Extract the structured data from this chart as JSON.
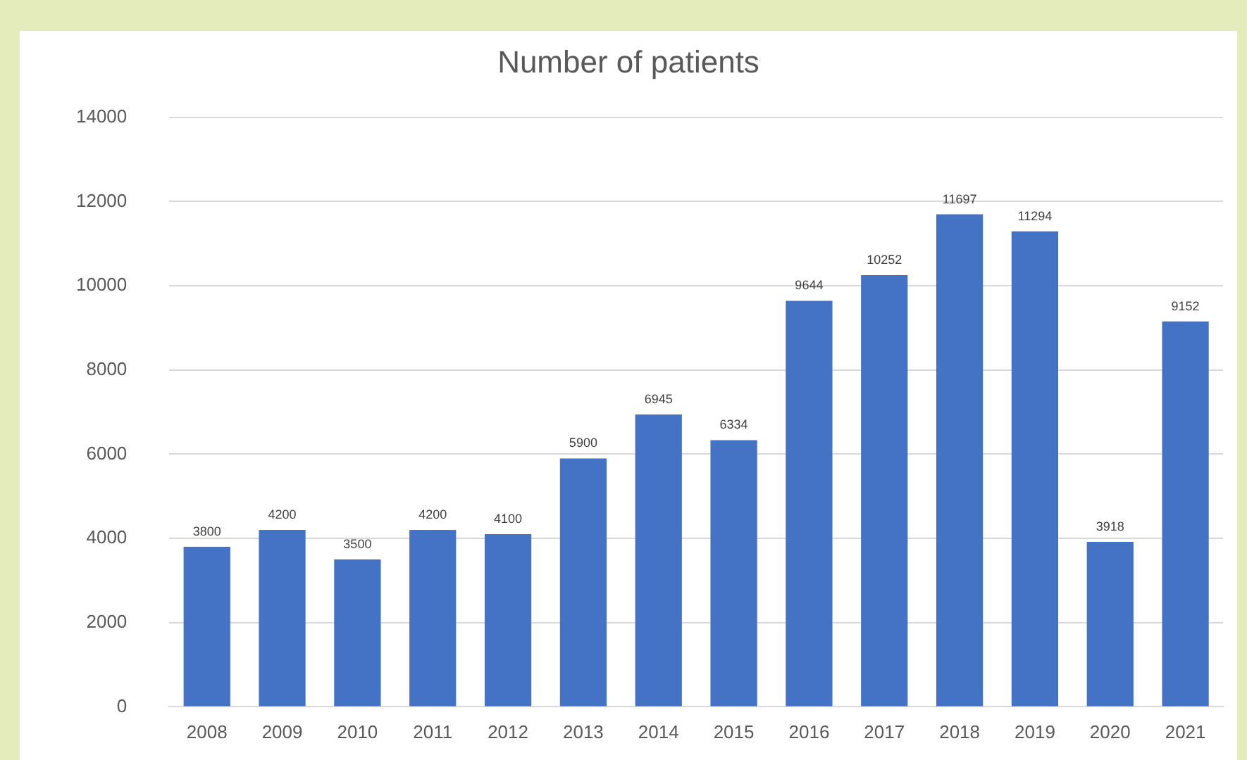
{
  "chart_data": {
    "type": "bar",
    "title": "Number of patients",
    "categories": [
      "2008",
      "2009",
      "2010",
      "2011",
      "2012",
      "2013",
      "2014",
      "2015",
      "2016",
      "2017",
      "2018",
      "2019",
      "2020",
      "2021"
    ],
    "values": [
      3800,
      4200,
      3500,
      4200,
      4100,
      5900,
      6945,
      6334,
      9644,
      10252,
      11697,
      11294,
      3918,
      9152
    ],
    "color": "#4472c4",
    "ylim": [
      0,
      14000
    ],
    "yticks": [
      0,
      2000,
      4000,
      6000,
      8000,
      10000,
      12000,
      14000
    ],
    "grid": "y",
    "data_labels": true
  }
}
